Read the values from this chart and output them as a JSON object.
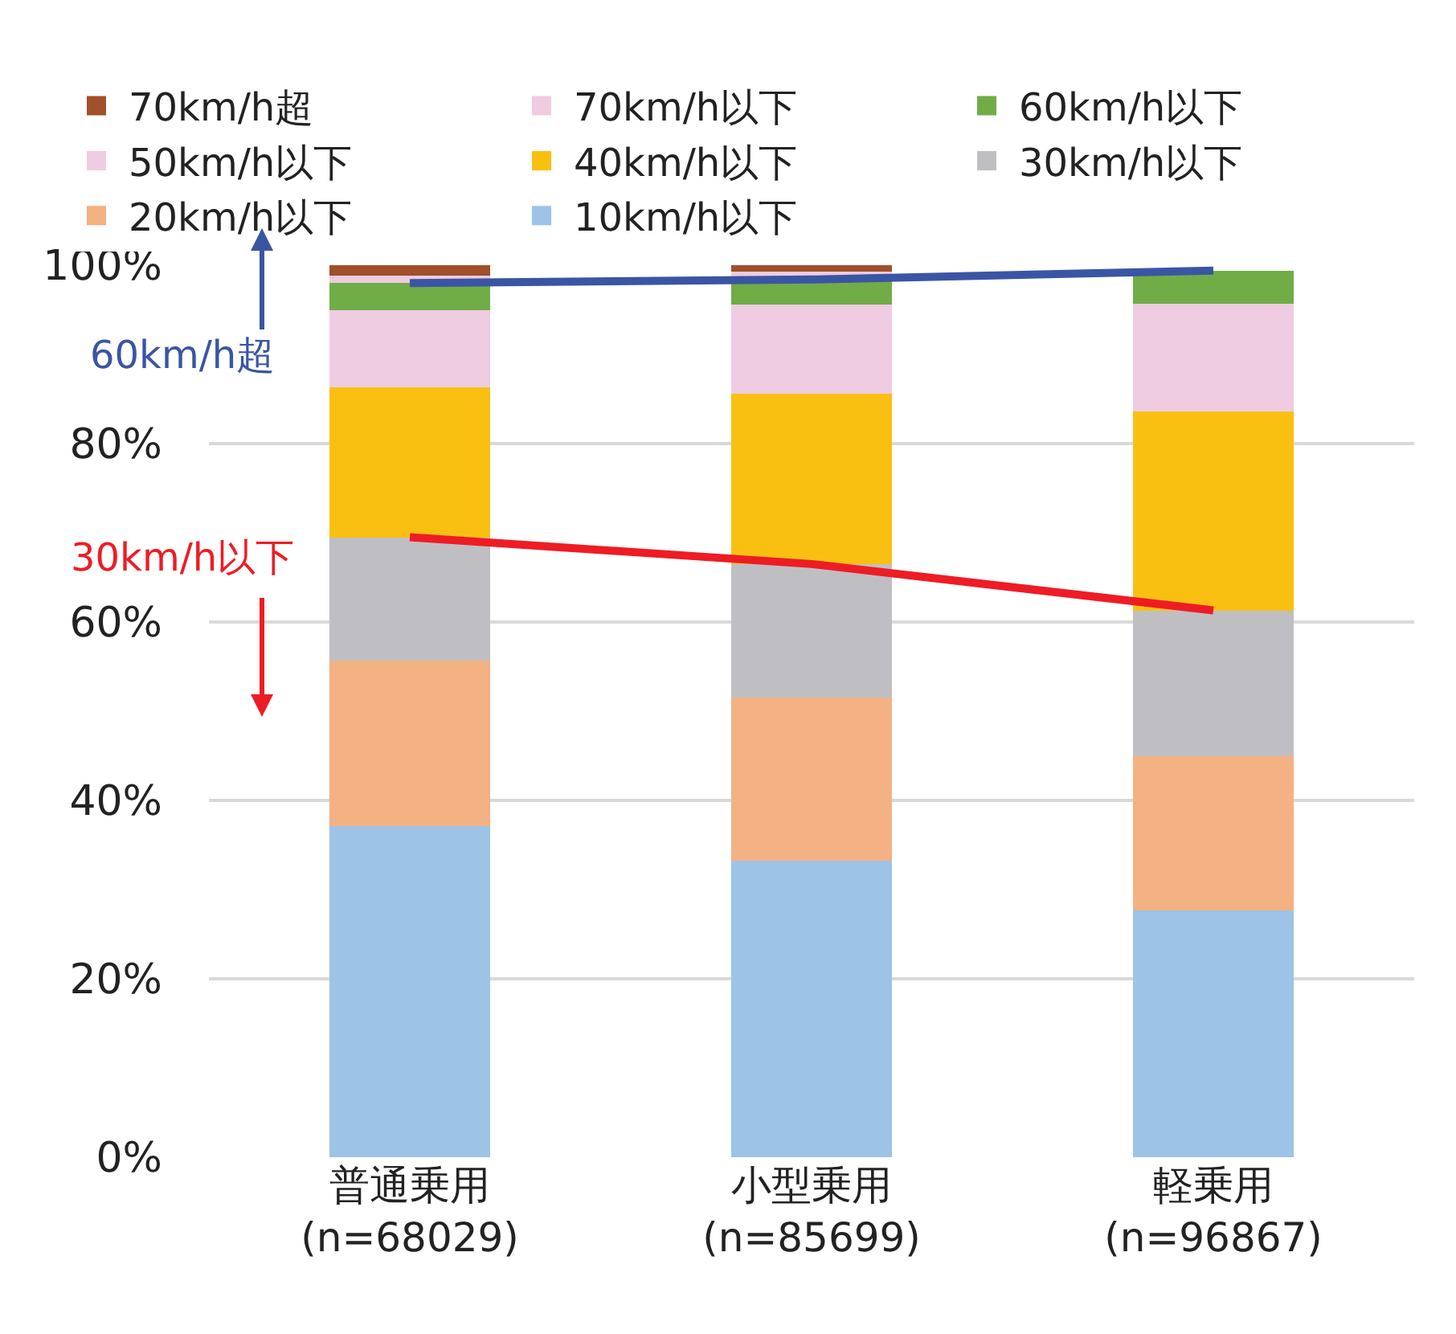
{
  "chart_data": {
    "type": "bar",
    "stacked": true,
    "categories": [
      "普通乗用\n(n=68029)",
      "小型乗用\n(n=85699)",
      "軽乗用\n(n=96867)"
    ],
    "series": [
      {
        "name": "10km/h以下",
        "color": "#9dc3e6",
        "values": [
          37.1,
          33.2,
          27.7
        ]
      },
      {
        "name": "20km/h以下",
        "color": "#f4b183",
        "values": [
          18.6,
          18.3,
          17.3
        ]
      },
      {
        "name": "30km/h以下",
        "color": "#bfbfc3",
        "values": [
          13.8,
          15.0,
          16.3
        ]
      },
      {
        "name": "40km/h以下",
        "color": "#f9c012",
        "values": [
          16.8,
          19.1,
          22.3
        ]
      },
      {
        "name": "50km/h以下",
        "color": "#efcce1",
        "values": [
          8.7,
          10.0,
          12.1
        ]
      },
      {
        "name": "60km/h以下",
        "color": "#70ad47",
        "values": [
          3.0,
          2.8,
          3.7
        ]
      },
      {
        "name": "70km/h以下",
        "color": "#efcce1",
        "values": [
          0.8,
          0.9,
          null
        ]
      },
      {
        "name": "70km/h超",
        "color": "#a0502a",
        "values": [
          1.2,
          0.7,
          null
        ]
      },
      {
        "type": "line",
        "color": "#3a55a4",
        "values": [
          98.0,
          98.4,
          99.4
        ]
      },
      {
        "type": "line",
        "color": "#ee1c24",
        "values": [
          69.5,
          66.5,
          61.3
        ]
      }
    ],
    "annotations": [
      "60km/h超",
      "30km/h以下"
    ],
    "ylim": [
      0,
      100
    ],
    "yticks": [
      {
        "value": 0,
        "label": "0%"
      },
      {
        "value": 20,
        "label": "20%"
      },
      {
        "value": 40,
        "label": "40%"
      },
      {
        "value": 60,
        "label": "60%"
      },
      {
        "value": 80,
        "label": "80%"
      },
      {
        "value": 100,
        "label": "100%"
      }
    ],
    "grid": "y",
    "legend": "top"
  }
}
